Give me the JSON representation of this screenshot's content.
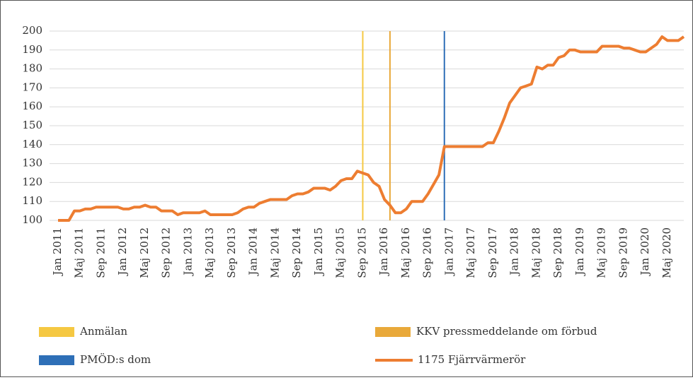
{
  "chart_data": {
    "type": "line",
    "categories": [
      "Jan 2011",
      null,
      null,
      null,
      "Maj 2011",
      null,
      null,
      null,
      "Sep 2011",
      null,
      null,
      null,
      "Jan 2012",
      null,
      null,
      null,
      "Maj 2012",
      null,
      null,
      null,
      "Sep 2012",
      null,
      null,
      null,
      "Jan 2013",
      null,
      null,
      null,
      "Maj 2013",
      null,
      null,
      null,
      "Sep 2013",
      null,
      null,
      null,
      "Jan 2014",
      null,
      null,
      null,
      "Maj 2014",
      null,
      null,
      null,
      "Sep 2014",
      null,
      null,
      null,
      "Jan 2015",
      null,
      null,
      null,
      "Maj 2015",
      null,
      null,
      null,
      "Sep 2015",
      null,
      null,
      null,
      "Jan 2016",
      null,
      null,
      null,
      "Maj 2016",
      null,
      null,
      null,
      "Sep 2016",
      null,
      null,
      null,
      "Jan 2017",
      null,
      null,
      null,
      "Maj 2017",
      null,
      null,
      null,
      "Sep 2017",
      null,
      null,
      null,
      "Jan 2018",
      null,
      null,
      null,
      "Maj 2018",
      null,
      null,
      null,
      "Sep 2018",
      null,
      null,
      null,
      "Jan 2019",
      null,
      null,
      null,
      "Maj 2019",
      null,
      null,
      null,
      "Sep 2019",
      null,
      null,
      null,
      "Jan 2020",
      null,
      null,
      null,
      "Maj 2020",
      null,
      null,
      null
    ],
    "series": [
      {
        "name": "1175 Fjärrvärmerör",
        "color": "#ed7d31",
        "values": [
          100,
          100,
          100,
          105,
          105,
          106,
          106,
          107,
          107,
          107,
          107,
          107,
          106,
          106,
          107,
          107,
          108,
          107,
          107,
          105,
          105,
          105,
          103,
          104,
          104,
          104,
          104,
          105,
          103,
          103,
          103,
          103,
          103,
          104,
          106,
          107,
          107,
          109,
          110,
          111,
          111,
          111,
          111,
          113,
          114,
          114,
          115,
          117,
          117,
          117,
          116,
          118,
          121,
          122,
          122,
          126,
          125,
          124,
          120,
          118,
          111,
          108,
          104,
          104,
          106,
          110,
          110,
          110,
          114,
          119,
          124,
          139,
          139,
          139,
          139,
          139,
          139,
          139,
          139,
          141,
          141,
          147,
          154,
          162,
          166,
          170,
          171,
          172,
          181,
          180,
          182,
          182,
          186,
          187,
          190,
          190,
          189,
          189,
          189,
          189,
          192,
          192,
          192,
          192,
          191,
          191,
          190,
          189,
          189,
          191,
          193,
          197,
          195,
          195,
          195,
          197
        ]
      }
    ],
    "events": [
      {
        "name": "Anmälan",
        "color": "#f5c842",
        "x": 56
      },
      {
        "name": "KKV pressmeddelande om förbud",
        "color": "#e9a93a",
        "x": 61
      },
      {
        "name": "PMÖD:s dom",
        "color": "#2e6fb7",
        "x": 71
      }
    ],
    "ylim": [
      100,
      200
    ],
    "yticks": [
      100,
      110,
      120,
      130,
      140,
      150,
      160,
      170,
      180,
      190,
      200
    ],
    "grid": true
  }
}
